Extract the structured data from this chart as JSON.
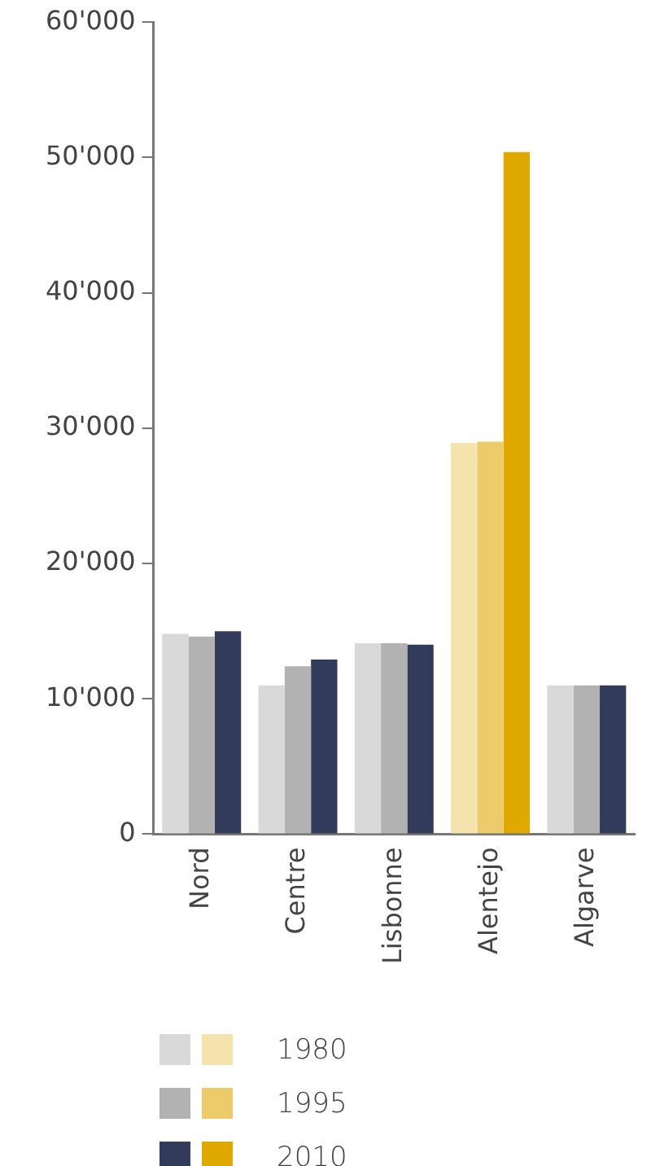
{
  "chart_data": {
    "type": "bar",
    "categories": [
      "Nord",
      "Centre",
      "Lisbonne",
      "Alentejo",
      "Algarve"
    ],
    "series": [
      {
        "name": "1980",
        "color": "#d9d9d9",
        "colors": [
          "#d9d9d9",
          "#d9d9d9",
          "#d9d9d9",
          "#f5e3ae",
          "#d9d9d9"
        ],
        "values": [
          14800,
          11000,
          14100,
          28900,
          11000
        ]
      },
      {
        "name": "1995",
        "color": "#b2b2b2",
        "colors": [
          "#b2b2b2",
          "#b2b2b2",
          "#b2b2b2",
          "#ebcb6a",
          "#b2b2b2"
        ],
        "values": [
          14600,
          12400,
          14100,
          29000,
          11000
        ]
      },
      {
        "name": "2010",
        "color": "#323c5a",
        "colors": [
          "#323c5a",
          "#323c5a",
          "#323c5a",
          "#e0a900",
          "#323c5a"
        ],
        "values": [
          15000,
          12900,
          14000,
          50400,
          11000
        ]
      }
    ],
    "ylim": [
      0,
      60000
    ],
    "yticks": [
      0,
      {
        "value": 10000,
        "label": "10'000"
      },
      {
        "value": 20000,
        "label": "20'000"
      },
      {
        "value": 30000,
        "label": "30'000"
      },
      {
        "value": 40000,
        "label": "40'000"
      },
      {
        "value": 50000,
        "label": "50'000"
      },
      {
        "value": 60000,
        "label": "60'000"
      }
    ],
    "grid": false,
    "legend": "bottom"
  }
}
